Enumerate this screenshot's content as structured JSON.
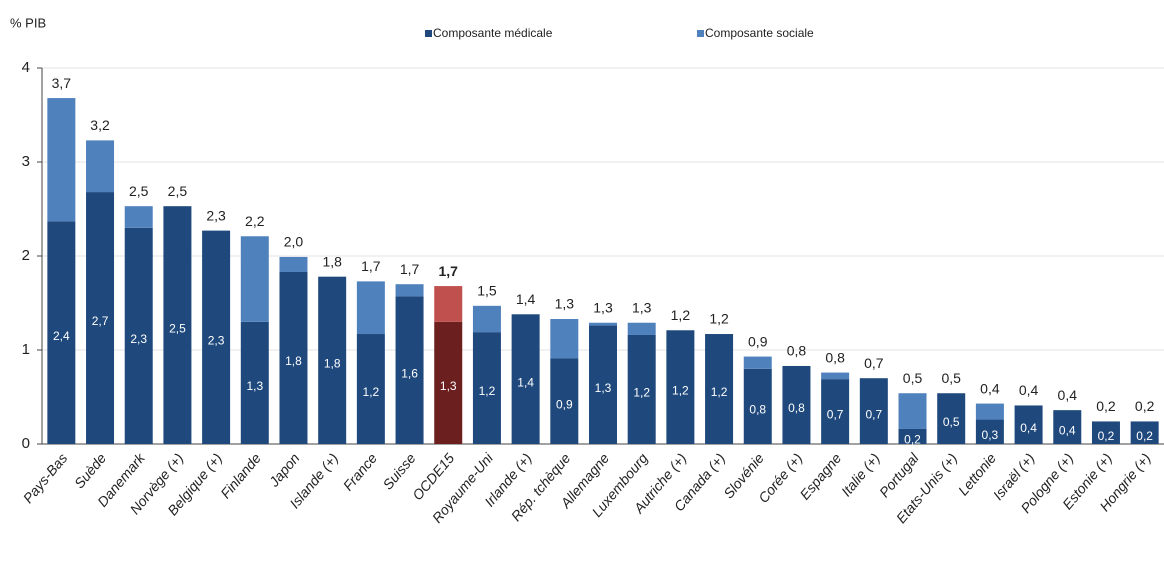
{
  "chart_data": {
    "type": "stacked_bar",
    "y_label": "% PIB",
    "categories": [
      "Pays-Bas",
      "Suède",
      "Danemark",
      "Norvège (+)",
      "Belgique (+)",
      "Finlande",
      "Japon",
      "Islande (+)",
      "France",
      "Suisse",
      "OCDE15",
      "Royaume-Uni",
      "Irlande (+)",
      "Rép. tchèque",
      "Allemagne",
      "Luxembourg",
      "Autriche (+)",
      "Canada (+)",
      "Slovénie",
      "Corée (+)",
      "Espagne",
      "Italie (+)",
      "Portugal",
      "Etats-Unis (+)",
      "Lettonie",
      "Israël (+)",
      "Pologne (+)",
      "Estonie (+)",
      "Hongrie (+)"
    ],
    "series": [
      {
        "name": "Composante médicale",
        "color": "#1f497d",
        "values": [
          2.37,
          2.68,
          2.3,
          2.53,
          2.27,
          1.3,
          1.83,
          1.78,
          1.17,
          1.57,
          1.3,
          1.19,
          1.38,
          0.91,
          1.26,
          1.16,
          1.21,
          1.17,
          0.8,
          0.83,
          0.69,
          0.7,
          0.16,
          0.54,
          0.26,
          0.41,
          0.36,
          0.24,
          0.24
        ],
        "value_labels": [
          "2,4",
          "2,7",
          "2,3",
          "2,5",
          "2,3",
          "1,3",
          "1,8",
          "1,8",
          "1,2",
          "1,6",
          "1,3",
          "1,2",
          "1,4",
          "0,9",
          "1,3",
          "1,2",
          "1,2",
          "1,2",
          "0,8",
          "0,8",
          "0,7",
          "0,7",
          "0,2",
          "0,5",
          "0,3",
          "0,4",
          "0,4",
          "0,2",
          "0,2"
        ]
      },
      {
        "name": "Composante sociale",
        "color": "#4f81bd",
        "values": [
          1.31,
          0.55,
          0.23,
          0,
          0,
          0.91,
          0.16,
          0,
          0.56,
          0.13,
          0.38,
          0.28,
          0,
          0.42,
          0.03,
          0.13,
          0,
          0,
          0.13,
          0,
          0.07,
          0,
          0.38,
          0,
          0.17,
          0,
          0,
          0,
          0
        ]
      }
    ],
    "totals": [
      3.68,
      3.23,
      2.53,
      2.53,
      2.27,
      2.21,
      1.99,
      1.78,
      1.73,
      1.7,
      1.68,
      1.47,
      1.38,
      1.33,
      1.29,
      1.29,
      1.21,
      1.17,
      0.93,
      0.83,
      0.76,
      0.7,
      0.54,
      0.54,
      0.43,
      0.41,
      0.36,
      0.24,
      0.24
    ],
    "total_labels": [
      "3,7",
      "3,2",
      "2,5",
      "2,5",
      "2,3",
      "2,2",
      "2,0",
      "1,8",
      "1,7",
      "1,7",
      "1,7",
      "1,5",
      "1,4",
      "1,3",
      "1,3",
      "1,3",
      "1,2",
      "1,2",
      "0,9",
      "0,8",
      "0,8",
      "0,7",
      "0,5",
      "0,5",
      "0,4",
      "0,4",
      "0,4",
      "0,2",
      "0,2"
    ],
    "highlight": "OCDE15",
    "highlight_colors": [
      "#6b1f1f",
      "#c0504d"
    ],
    "ylim": [
      0,
      4
    ],
    "yticks": [
      0,
      1,
      2,
      3,
      4
    ],
    "grid": true
  }
}
